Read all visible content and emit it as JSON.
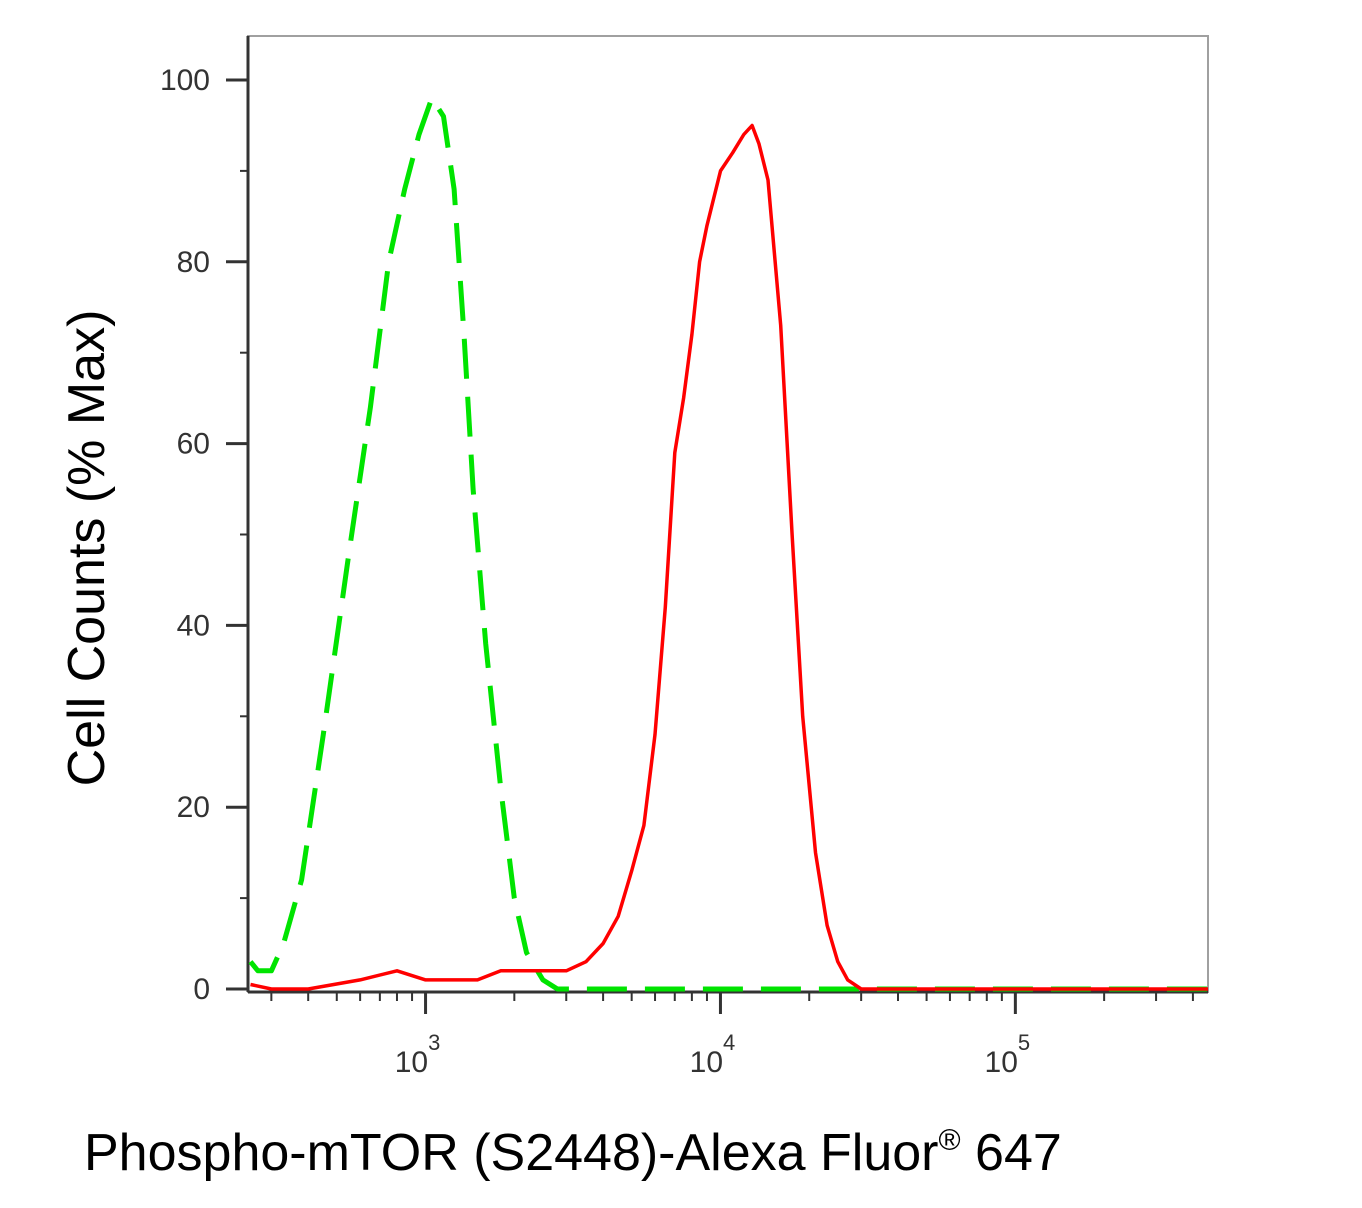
{
  "chart_data": {
    "type": "line",
    "title": "",
    "xlabel": {
      "main": "Phospho-mTOR (S2448)-Alexa Fluor",
      "superscript": "®",
      "suffix": " 647"
    },
    "ylabel": "Cell Counts (% Max)",
    "x_scale": "log",
    "xlim": [
      250,
      450000
    ],
    "ylim": [
      -2,
      105
    ],
    "y_ticks": [
      0,
      20,
      40,
      60,
      80,
      100
    ],
    "y_tick_labels": [
      "0",
      "20",
      "40",
      "60",
      "80",
      "100"
    ],
    "x_ticks": [
      {
        "value": 1000,
        "base": "10",
        "exp": "3"
      },
      {
        "value": 10000,
        "base": "10",
        "exp": "4"
      },
      {
        "value": 100000,
        "base": "10",
        "exp": "5"
      }
    ],
    "grid": false,
    "series": [
      {
        "color": "#00e400",
        "style": "dashed",
        "x": [
          255,
          270,
          300,
          330,
          380,
          450,
          550,
          650,
          750,
          850,
          950,
          1050,
          1150,
          1250,
          1350,
          1450,
          1600,
          1800,
          2000,
          2200,
          2500,
          2800,
          3200,
          4000,
          6000,
          10000,
          20000,
          50000,
          100000,
          200000,
          450000
        ],
        "y": [
          3,
          2,
          2,
          5,
          12,
          28,
          48,
          64,
          80,
          88,
          94,
          98,
          96,
          88,
          72,
          55,
          38,
          22,
          10,
          4,
          1,
          0,
          0,
          0,
          0,
          0,
          0,
          0,
          0,
          0,
          0
        ]
      },
      {
        "color": "#ff0000",
        "style": "solid",
        "x": [
          255,
          300,
          400,
          600,
          800,
          1000,
          1200,
          1500,
          1800,
          2200,
          2600,
          3000,
          3500,
          4000,
          4500,
          5000,
          5500,
          6000,
          6500,
          7000,
          7500,
          8000,
          8500,
          9000,
          10000,
          11000,
          12000,
          12800,
          13500,
          14500,
          16000,
          17500,
          19000,
          21000,
          23000,
          25000,
          27000,
          30000,
          35000,
          45000,
          60000,
          100000,
          200000,
          450000
        ],
        "y": [
          0.5,
          0,
          0,
          1,
          2,
          1,
          1,
          1,
          2,
          2,
          2,
          2,
          3,
          5,
          8,
          13,
          18,
          28,
          42,
          59,
          65,
          72,
          80,
          84,
          90,
          92,
          94,
          95,
          93,
          89,
          73,
          50,
          30,
          15,
          7,
          3,
          1,
          0,
          0,
          0,
          0,
          0,
          0,
          0
        ]
      }
    ]
  }
}
